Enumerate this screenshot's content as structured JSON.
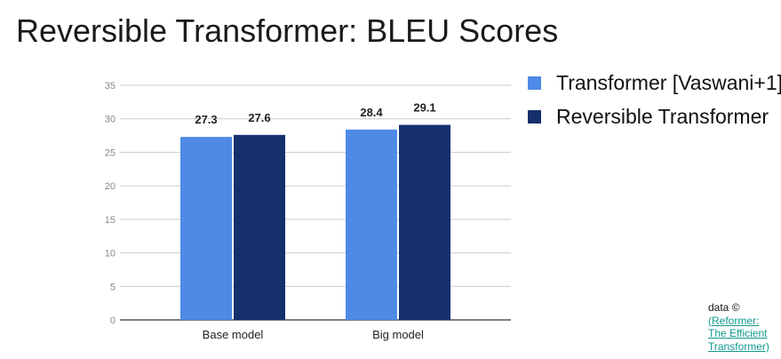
{
  "slide": {
    "title": "Reversible Transformer: BLEU Scores"
  },
  "credit": {
    "prefix": "data ©",
    "link_text": "(Reformer: The Efficient Transformer)"
  },
  "chart_data": {
    "type": "bar",
    "categories": [
      "Base model",
      "Big model"
    ],
    "series": [
      {
        "name": "Transformer [Vaswani+1]",
        "values": [
          27.3,
          28.4
        ],
        "color": "#4e8ae6"
      },
      {
        "name": "Reversible Transformer",
        "values": [
          27.6,
          29.1
        ],
        "color": "#16306e"
      }
    ],
    "ylim": [
      0,
      35
    ],
    "yticks": [
      "0",
      "5",
      "10",
      "15",
      "20",
      "25",
      "30",
      "35"
    ],
    "grid": true,
    "legend_position": "right",
    "xlabel": "",
    "ylabel": ""
  }
}
